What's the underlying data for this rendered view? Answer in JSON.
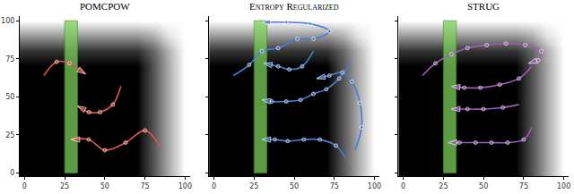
{
  "chart_data": [
    {
      "type": "line",
      "title": "POMCPOW",
      "color": "#e5534b",
      "marker": "circle",
      "line_style": "solid",
      "xlim": [
        -3,
        103
      ],
      "ylim": [
        -2,
        103
      ],
      "xticks": [
        0,
        25,
        50,
        75,
        100
      ],
      "yticks": [
        0,
        25,
        50,
        75,
        100
      ],
      "background": {
        "x": [
          0,
          10,
          20,
          30,
          40,
          50,
          60,
          70,
          80,
          90,
          100
        ],
        "y": [
          0,
          10,
          20,
          30,
          40,
          50,
          60,
          70,
          80,
          90,
          100
        ],
        "zlim": [
          0,
          1
        ],
        "z": [
          [
            0,
            0,
            0,
            0,
            0,
            0,
            0,
            0,
            0.33,
            0.67,
            1
          ],
          [
            0,
            0,
            0,
            0,
            0,
            0,
            0,
            0,
            0.33,
            0.67,
            1
          ],
          [
            0,
            0,
            0,
            0,
            0,
            0,
            0,
            0,
            0.33,
            0.67,
            1
          ],
          [
            0,
            0,
            0,
            0,
            0,
            0,
            0,
            0,
            0.33,
            0.67,
            1
          ],
          [
            0,
            0,
            0,
            0,
            0,
            0,
            0,
            0,
            0.33,
            0.67,
            1
          ],
          [
            0,
            0,
            0,
            0,
            0,
            0,
            0,
            0,
            0.33,
            0.67,
            1
          ],
          [
            0,
            0,
            0,
            0,
            0,
            0,
            0,
            0,
            0.33,
            0.67,
            1
          ],
          [
            0,
            0,
            0,
            0,
            0,
            0,
            0,
            0,
            0.33,
            0.67,
            1
          ],
          [
            0.2,
            0.2,
            0.2,
            0.2,
            0.2,
            0.2,
            0.2,
            0.2,
            0.39,
            0.7,
            1
          ],
          [
            0.6,
            0.6,
            0.6,
            0.6,
            0.6,
            0.6,
            0.6,
            0.6,
            0.69,
            0.9,
            1
          ],
          [
            1,
            1,
            1,
            1,
            1,
            1,
            1,
            1,
            1,
            1,
            1
          ]
        ]
      },
      "region": {
        "x": [
          25,
          33
        ],
        "y": [
          0,
          100
        ],
        "color": "#7ccf5a"
      },
      "series": [
        {
          "x": [
            12,
            20,
            28,
            38
          ],
          "values": [
            64,
            73,
            72,
            65
          ]
        },
        {
          "x": [
            60,
            55,
            47,
            40,
            33
          ],
          "values": [
            57,
            45,
            40,
            40,
            44
          ]
        },
        {
          "x": [
            84,
            75,
            63,
            50,
            40,
            29
          ],
          "values": [
            18,
            28,
            20,
            15,
            22,
            22
          ]
        }
      ]
    },
    {
      "type": "line",
      "title": "Entropy Regularized",
      "color": "#4a7bd6",
      "marker": "circle",
      "line_style": "solid",
      "tick_labels": "x",
      "xlim": [
        -3,
        103
      ],
      "ylim": [
        -2,
        103
      ],
      "xticks": [
        0,
        25,
        50,
        75,
        100
      ],
      "yticks": [
        0,
        25,
        50,
        75,
        100
      ],
      "background": {
        "x": [
          0,
          10,
          20,
          30,
          40,
          50,
          60,
          70,
          80,
          90,
          100
        ],
        "y": [
          0,
          10,
          20,
          30,
          40,
          50,
          60,
          70,
          80,
          90,
          100
        ],
        "zlim": [
          0,
          1
        ],
        "z": [
          [
            0,
            0,
            0,
            0,
            0,
            0,
            0,
            0,
            0.33,
            0.67,
            1
          ],
          [
            0,
            0,
            0,
            0,
            0,
            0,
            0,
            0,
            0.33,
            0.67,
            1
          ],
          [
            0,
            0,
            0,
            0,
            0,
            0,
            0,
            0,
            0.33,
            0.67,
            1
          ],
          [
            0,
            0,
            0,
            0,
            0,
            0,
            0,
            0,
            0.33,
            0.67,
            1
          ],
          [
            0,
            0,
            0,
            0,
            0,
            0,
            0,
            0,
            0.33,
            0.67,
            1
          ],
          [
            0,
            0,
            0,
            0,
            0,
            0,
            0,
            0,
            0.33,
            0.67,
            1
          ],
          [
            0,
            0,
            0,
            0,
            0,
            0,
            0,
            0,
            0.33,
            0.67,
            1
          ],
          [
            0,
            0,
            0,
            0,
            0,
            0,
            0,
            0,
            0.33,
            0.67,
            1
          ],
          [
            0.2,
            0.2,
            0.2,
            0.2,
            0.2,
            0.2,
            0.2,
            0.2,
            0.39,
            0.7,
            1
          ],
          [
            0.6,
            0.6,
            0.6,
            0.6,
            0.6,
            0.6,
            0.6,
            0.6,
            0.69,
            0.9,
            1
          ],
          [
            1,
            1,
            1,
            1,
            1,
            1,
            1,
            1,
            1,
            1,
            1
          ]
        ]
      },
      "region": {
        "x": [
          25,
          33
        ],
        "y": [
          0,
          100
        ],
        "color": "#7ccf5a"
      },
      "series": [
        {
          "x": [
            12,
            22,
            30,
            40,
            52,
            62,
            72,
            60,
            45,
            30
          ],
          "values": [
            64,
            71,
            80,
            82,
            88,
            88,
            93,
            98,
            99,
            99
          ]
        },
        {
          "x": [
            62,
            55,
            47,
            40,
            31
          ],
          "values": [
            80,
            70,
            68,
            70,
            72
          ]
        },
        {
          "x": [
            85,
            78,
            70,
            62,
            54,
            45,
            36,
            30
          ],
          "values": [
            72,
            62,
            55,
            52,
            48,
            47,
            47,
            48
          ]
        },
        {
          "x": [
            88,
            92,
            91,
            86,
            80,
            72,
            64
          ],
          "values": [
            15,
            30,
            46,
            60,
            66,
            64,
            62
          ]
        },
        {
          "x": [
            82,
            76,
            66,
            56,
            46,
            38,
            30
          ],
          "values": [
            10,
            18,
            22,
            22,
            21,
            22,
            22
          ]
        }
      ]
    },
    {
      "type": "line",
      "title": "STRUG",
      "color": "#a05bbf",
      "marker": "circle",
      "line_style": "solid",
      "tick_labels": "x",
      "xlim": [
        -3,
        103
      ],
      "ylim": [
        -2,
        103
      ],
      "xticks": [
        0,
        25,
        50,
        75,
        100
      ],
      "yticks": [
        0,
        25,
        50,
        75,
        100
      ],
      "background": {
        "x": [
          0,
          10,
          20,
          30,
          40,
          50,
          60,
          70,
          80,
          90,
          100
        ],
        "y": [
          0,
          10,
          20,
          30,
          40,
          50,
          60,
          70,
          80,
          90,
          100
        ],
        "zlim": [
          0,
          1
        ],
        "z": [
          [
            0,
            0,
            0,
            0,
            0,
            0,
            0,
            0,
            0.33,
            0.67,
            1
          ],
          [
            0,
            0,
            0,
            0,
            0,
            0,
            0,
            0,
            0.33,
            0.67,
            1
          ],
          [
            0,
            0,
            0,
            0,
            0,
            0,
            0,
            0,
            0.33,
            0.67,
            1
          ],
          [
            0,
            0,
            0,
            0,
            0,
            0,
            0,
            0,
            0.33,
            0.67,
            1
          ],
          [
            0,
            0,
            0,
            0,
            0,
            0,
            0,
            0,
            0.33,
            0.67,
            1
          ],
          [
            0,
            0,
            0,
            0,
            0,
            0,
            0,
            0,
            0.33,
            0.67,
            1
          ],
          [
            0,
            0,
            0,
            0,
            0,
            0,
            0,
            0,
            0.33,
            0.67,
            1
          ],
          [
            0,
            0,
            0,
            0,
            0,
            0,
            0,
            0,
            0.33,
            0.67,
            1
          ],
          [
            0.2,
            0.2,
            0.2,
            0.2,
            0.2,
            0.2,
            0.2,
            0.2,
            0.39,
            0.7,
            1
          ],
          [
            0.6,
            0.6,
            0.6,
            0.6,
            0.6,
            0.6,
            0.6,
            0.6,
            0.69,
            0.9,
            1
          ],
          [
            1,
            1,
            1,
            1,
            1,
            1,
            1,
            1,
            1,
            1,
            1
          ]
        ]
      },
      "region": {
        "x": [
          25,
          33
        ],
        "y": [
          0,
          100
        ],
        "color": "#7ccf5a"
      },
      "series": [
        {
          "x": [
            12,
            20,
            30,
            40,
            52,
            64,
            76,
            86,
            84,
            78
          ],
          "values": [
            64,
            72,
            78,
            82,
            84,
            85,
            84,
            80,
            74,
            72
          ]
        },
        {
          "x": [
            80,
            72,
            60,
            48,
            38,
            30
          ],
          "values": [
            70,
            62,
            58,
            56,
            56,
            57
          ]
        },
        {
          "x": [
            72,
            62,
            50,
            40,
            30
          ],
          "values": [
            45,
            43,
            42,
            42,
            42
          ]
        },
        {
          "x": [
            80,
            75,
            65,
            55,
            45,
            35,
            28
          ],
          "values": [
            30,
            22,
            20,
            20,
            20,
            20,
            20
          ]
        }
      ]
    }
  ]
}
